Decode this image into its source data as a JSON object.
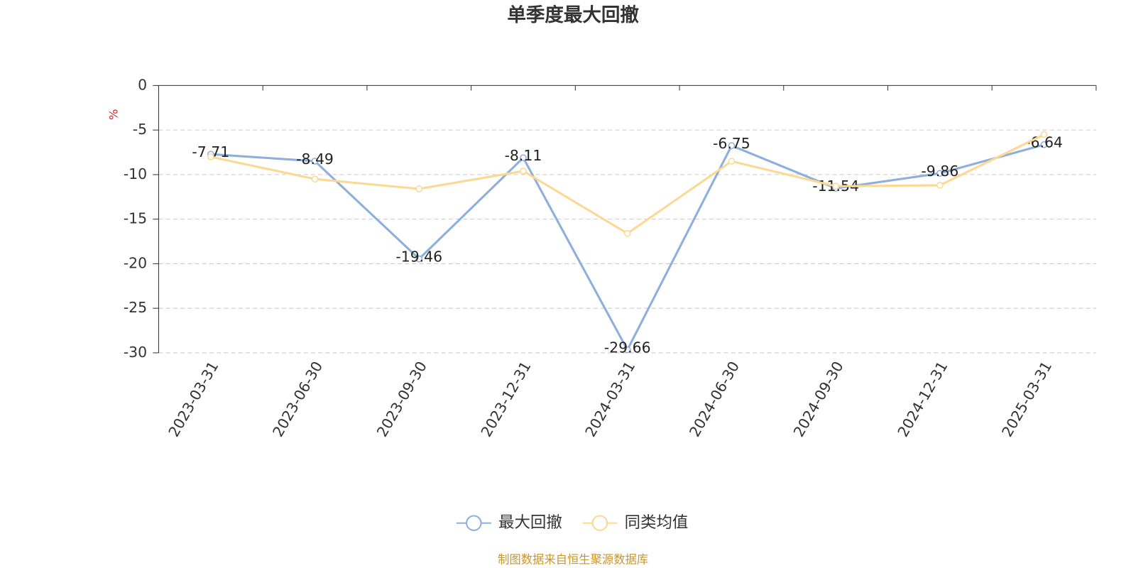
{
  "chart_data": {
    "type": "line",
    "title": "单季度最大回撤",
    "y_label": "%",
    "categories": [
      "2023-03-31",
      "2023-06-30",
      "2023-09-30",
      "2023-12-31",
      "2024-03-31",
      "2024-06-30",
      "2024-09-30",
      "2024-12-31",
      "2025-03-31"
    ],
    "series": [
      {
        "name": "最大回撤",
        "color": "#8eaedb",
        "values": [
          -7.71,
          -8.49,
          -19.46,
          -8.11,
          -29.66,
          -6.75,
          -11.54,
          -9.86,
          -6.64
        ],
        "show_labels": true
      },
      {
        "name": "同类均值",
        "color": "#fcd893",
        "values": [
          -8.0,
          -10.5,
          -11.6,
          -9.6,
          -16.6,
          -8.5,
          -11.3,
          -11.2,
          -5.5
        ],
        "show_labels": false
      }
    ],
    "ylim": [
      -30,
      0
    ],
    "yticks": [
      0,
      -5,
      -10,
      -15,
      -20,
      -25,
      -30
    ],
    "grid": true,
    "legend": "bottom",
    "source": "制图数据来自恒生聚源数据库"
  }
}
